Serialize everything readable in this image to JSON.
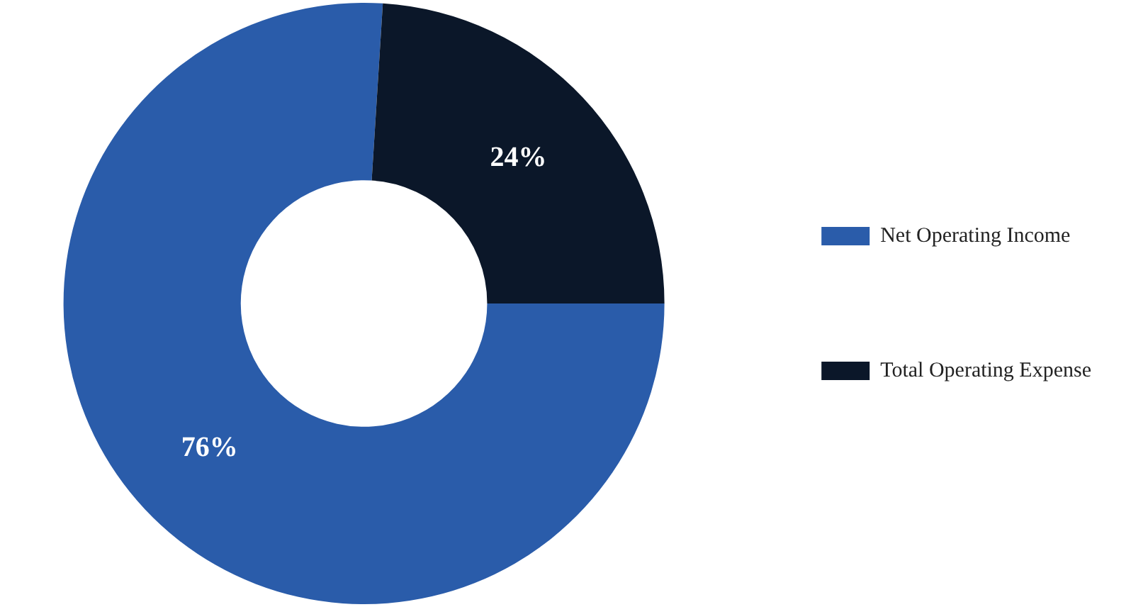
{
  "chart_data": {
    "type": "donut",
    "categories": [
      "Net Operating Income",
      "Total Operating Expense"
    ],
    "values": [
      76,
      24
    ],
    "colors": [
      "#2a5caa",
      "#0b1729"
    ],
    "value_labels": [
      "76%",
      "24%"
    ],
    "legend": "right"
  }
}
